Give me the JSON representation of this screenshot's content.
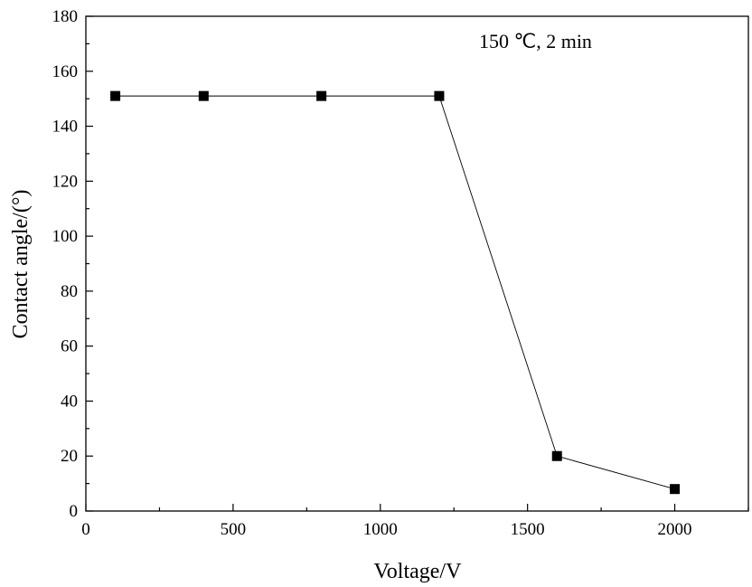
{
  "chart_data": {
    "type": "line",
    "title": "",
    "xlabel": "Voltage/V",
    "ylabel": "Contact angle/(°)",
    "xlim": [
      0,
      2250
    ],
    "ylim": [
      0,
      180
    ],
    "xticks": [
      0,
      500,
      1000,
      1500,
      2000
    ],
    "xticks_minor": [
      250,
      750,
      1250,
      1750,
      2250
    ],
    "yticks": [
      0,
      20,
      40,
      60,
      80,
      100,
      120,
      140,
      160,
      180
    ],
    "grid": false,
    "annotation": "150 ℃,  2 min",
    "marker": "square",
    "series": [
      {
        "x": [
          100,
          400,
          800,
          1200,
          1600,
          2000
        ],
        "y": [
          151,
          151,
          151,
          151,
          20,
          8
        ]
      }
    ]
  },
  "style": {
    "line_color": "#000000",
    "marker_color": "#000000",
    "background": "#ffffff"
  }
}
